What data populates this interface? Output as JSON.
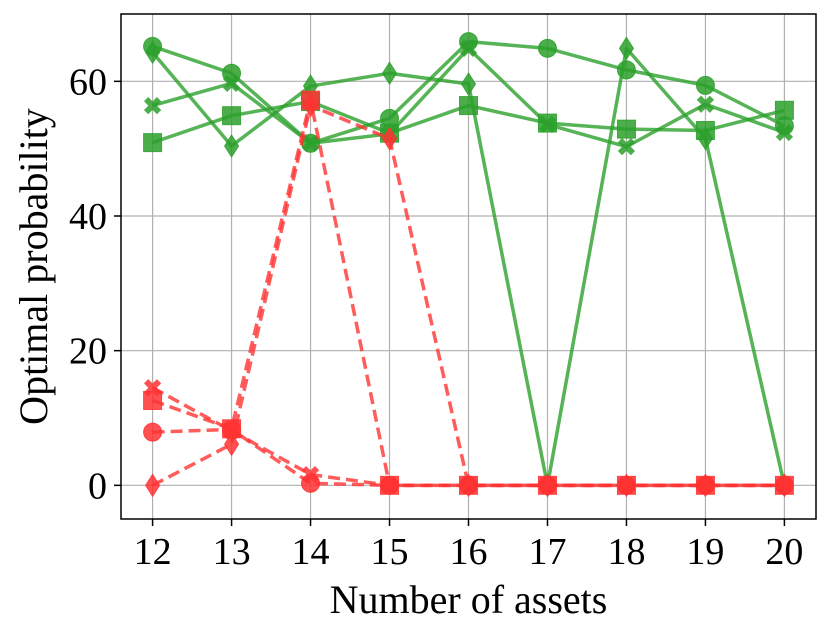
{
  "chart_data": {
    "type": "line",
    "title": "",
    "xlabel": "Number of assets",
    "ylabel": "Optimal probability",
    "x": [
      12,
      13,
      14,
      15,
      16,
      17,
      18,
      19,
      20
    ],
    "xlim": [
      11.6,
      20.4
    ],
    "ylim": [
      -5,
      70
    ],
    "xticks": [
      "12",
      "13",
      "14",
      "15",
      "16",
      "17",
      "18",
      "19",
      "20"
    ],
    "yticks": [
      0,
      20,
      40,
      60
    ],
    "grid": true,
    "colors": {
      "green": "#2ca02c",
      "red": "#ff3333"
    },
    "series": [
      {
        "marker": "circle",
        "color": "green",
        "style": "solid",
        "values": [
          65.2,
          61.2,
          50.8,
          54.5,
          65.9,
          64.9,
          61.7,
          59.4,
          53.4
        ]
      },
      {
        "marker": "square",
        "color": "green",
        "style": "solid",
        "values": [
          50.9,
          54.9,
          57.0,
          52.3,
          56.4,
          53.8,
          52.9,
          52.7,
          55.7
        ]
      },
      {
        "marker": "x",
        "color": "green",
        "style": "solid",
        "values": [
          56.4,
          59.7,
          50.8,
          52.2,
          64.9,
          53.6,
          50.3,
          56.6,
          52.4
        ]
      },
      {
        "marker": "diamond",
        "color": "green",
        "style": "solid",
        "values": [
          64.3,
          50.4,
          59.3,
          61.2,
          59.6,
          0.0,
          64.9,
          51.5,
          0.0
        ]
      },
      {
        "marker": "circle",
        "color": "red",
        "style": "dashed",
        "values": [
          7.9,
          8.3,
          0.3,
          0.0,
          0.0,
          0.0,
          0.0,
          0.0,
          0.0
        ]
      },
      {
        "marker": "square",
        "color": "red",
        "style": "dashed",
        "values": [
          12.6,
          8.4,
          57.2,
          0.0,
          0.0,
          0.0,
          0.0,
          0.0,
          0.0
        ]
      },
      {
        "marker": "x",
        "color": "red",
        "style": "dashed",
        "values": [
          14.5,
          8.1,
          1.6,
          0.0,
          0.0,
          0.0,
          0.0,
          0.0,
          0.0
        ]
      },
      {
        "marker": "diamond",
        "color": "red",
        "style": "dashed",
        "values": [
          0.0,
          6.1,
          56.4,
          51.5,
          0.0,
          0.0,
          0.0,
          0.0,
          0.0
        ]
      }
    ]
  }
}
